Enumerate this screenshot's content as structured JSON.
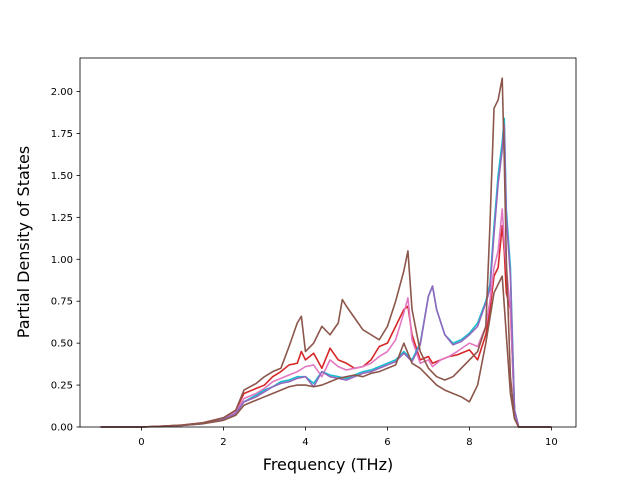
{
  "chart_data": {
    "type": "line",
    "title": "",
    "xlabel": "Frequency (THz)",
    "ylabel": "Partial Density of States",
    "xlim": [
      -1.5,
      10.6
    ],
    "ylim": [
      0,
      2.2
    ],
    "xticks": [
      0,
      2,
      4,
      6,
      8,
      10
    ],
    "xtick_labels": [
      "0",
      "2",
      "4",
      "6",
      "8",
      "10"
    ],
    "yticks": [
      0.0,
      0.25,
      0.5,
      0.75,
      1.0,
      1.25,
      1.5,
      1.75,
      2.0
    ],
    "ytick_labels": [
      "0.00",
      "0.25",
      "0.50",
      "0.75",
      "1.00",
      "1.25",
      "1.50",
      "1.75",
      "2.00"
    ],
    "grid": false,
    "series": [
      {
        "color": "#d62728",
        "x": [
          -1.0,
          0.0,
          0.5,
          1.0,
          1.5,
          2.0,
          2.3,
          2.5,
          2.8,
          3.0,
          3.2,
          3.4,
          3.6,
          3.8,
          3.9,
          4.0,
          4.2,
          4.4,
          4.6,
          4.8,
          5.0,
          5.2,
          5.4,
          5.6,
          5.8,
          6.0,
          6.2,
          6.4,
          6.5,
          6.6,
          6.8,
          7.0,
          7.1,
          7.3,
          7.5,
          7.7,
          8.0,
          8.2,
          8.4,
          8.5,
          8.6,
          8.7,
          8.8,
          8.85,
          8.9,
          9.0,
          9.1,
          9.2,
          9.5,
          10.0
        ],
        "y": [
          0.0,
          0.0,
          0.005,
          0.012,
          0.025,
          0.055,
          0.1,
          0.2,
          0.23,
          0.25,
          0.3,
          0.33,
          0.37,
          0.38,
          0.45,
          0.4,
          0.44,
          0.35,
          0.47,
          0.4,
          0.38,
          0.35,
          0.36,
          0.4,
          0.48,
          0.5,
          0.6,
          0.7,
          0.72,
          0.55,
          0.4,
          0.42,
          0.38,
          0.4,
          0.42,
          0.43,
          0.46,
          0.4,
          0.55,
          0.7,
          0.9,
          0.95,
          1.2,
          1.05,
          0.8,
          0.7,
          0.1,
          0.0,
          0.0,
          0.0
        ]
      },
      {
        "color": "#e377c2",
        "x": [
          -1.0,
          0.0,
          0.5,
          1.0,
          1.5,
          2.0,
          2.3,
          2.5,
          2.8,
          3.0,
          3.2,
          3.4,
          3.6,
          3.8,
          4.0,
          4.2,
          4.4,
          4.6,
          4.8,
          5.0,
          5.2,
          5.4,
          5.6,
          5.8,
          6.0,
          6.2,
          6.4,
          6.5,
          6.6,
          6.8,
          7.0,
          7.1,
          7.3,
          7.5,
          7.7,
          8.0,
          8.2,
          8.4,
          8.5,
          8.6,
          8.7,
          8.8,
          8.85,
          8.9,
          9.0,
          9.1,
          9.2,
          9.5,
          10.0
        ],
        "y": [
          0.0,
          0.0,
          0.005,
          0.01,
          0.022,
          0.05,
          0.09,
          0.17,
          0.2,
          0.23,
          0.27,
          0.29,
          0.31,
          0.33,
          0.36,
          0.37,
          0.3,
          0.4,
          0.36,
          0.34,
          0.35,
          0.36,
          0.38,
          0.42,
          0.45,
          0.52,
          0.68,
          0.77,
          0.52,
          0.38,
          0.4,
          0.36,
          0.4,
          0.42,
          0.45,
          0.5,
          0.48,
          0.6,
          0.75,
          0.95,
          1.05,
          1.3,
          1.1,
          0.95,
          0.7,
          0.1,
          0.0,
          0.0,
          0.0
        ]
      },
      {
        "color": "#17becf",
        "x": [
          -1.0,
          0.0,
          0.5,
          1.0,
          1.5,
          2.0,
          2.3,
          2.5,
          2.8,
          3.0,
          3.2,
          3.4,
          3.6,
          3.8,
          4.0,
          4.2,
          4.4,
          4.6,
          4.8,
          5.0,
          5.2,
          5.4,
          5.6,
          5.8,
          6.0,
          6.2,
          6.4,
          6.6,
          6.8,
          7.0,
          7.1,
          7.2,
          7.4,
          7.6,
          7.8,
          8.0,
          8.2,
          8.4,
          8.5,
          8.6,
          8.7,
          8.8,
          8.85,
          8.9,
          9.0,
          9.1,
          9.2,
          9.5,
          10.0
        ],
        "y": [
          0.0,
          0.0,
          0.004,
          0.01,
          0.02,
          0.045,
          0.08,
          0.15,
          0.19,
          0.22,
          0.24,
          0.27,
          0.28,
          0.3,
          0.3,
          0.26,
          0.33,
          0.31,
          0.3,
          0.29,
          0.31,
          0.33,
          0.34,
          0.36,
          0.38,
          0.4,
          0.45,
          0.4,
          0.5,
          0.78,
          0.84,
          0.7,
          0.55,
          0.5,
          0.52,
          0.56,
          0.62,
          0.75,
          0.85,
          1.2,
          1.5,
          1.7,
          1.84,
          1.3,
          0.95,
          0.1,
          0.0,
          0.0,
          0.0
        ]
      },
      {
        "color": "#9467bd",
        "x": [
          -1.0,
          0.0,
          0.5,
          1.0,
          1.5,
          2.0,
          2.3,
          2.5,
          2.8,
          3.0,
          3.2,
          3.4,
          3.6,
          3.8,
          4.0,
          4.2,
          4.4,
          4.6,
          4.8,
          5.0,
          5.2,
          5.4,
          5.6,
          5.8,
          6.0,
          6.2,
          6.4,
          6.6,
          6.8,
          7.0,
          7.1,
          7.2,
          7.4,
          7.6,
          7.8,
          8.0,
          8.2,
          8.4,
          8.5,
          8.6,
          8.7,
          8.8,
          8.85,
          8.9,
          9.0,
          9.1,
          9.2,
          9.5,
          10.0
        ],
        "y": [
          0.0,
          0.0,
          0.004,
          0.01,
          0.02,
          0.045,
          0.08,
          0.15,
          0.18,
          0.21,
          0.24,
          0.26,
          0.27,
          0.29,
          0.3,
          0.24,
          0.33,
          0.3,
          0.29,
          0.28,
          0.3,
          0.32,
          0.33,
          0.35,
          0.37,
          0.39,
          0.44,
          0.39,
          0.49,
          0.78,
          0.84,
          0.7,
          0.55,
          0.49,
          0.51,
          0.55,
          0.6,
          0.74,
          0.82,
          1.15,
          1.45,
          1.65,
          1.8,
          1.25,
          0.9,
          0.1,
          0.0,
          0.0,
          0.0
        ]
      },
      {
        "color": "#8c564b",
        "x": [
          -1.0,
          0.0,
          0.5,
          1.0,
          1.5,
          2.0,
          2.3,
          2.5,
          2.8,
          3.0,
          3.2,
          3.4,
          3.6,
          3.8,
          3.9,
          4.0,
          4.2,
          4.4,
          4.6,
          4.8,
          4.9,
          5.0,
          5.2,
          5.4,
          5.6,
          5.8,
          6.0,
          6.2,
          6.4,
          6.5,
          6.6,
          6.8,
          7.0,
          7.2,
          7.4,
          7.6,
          7.8,
          8.0,
          8.2,
          8.4,
          8.5,
          8.6,
          8.7,
          8.8,
          8.85,
          8.9,
          9.0,
          9.1,
          9.2,
          9.5,
          10.0
        ],
        "y": [
          0.0,
          0.0,
          0.005,
          0.012,
          0.025,
          0.055,
          0.1,
          0.22,
          0.26,
          0.3,
          0.33,
          0.35,
          0.48,
          0.62,
          0.66,
          0.45,
          0.5,
          0.6,
          0.55,
          0.62,
          0.76,
          0.72,
          0.65,
          0.58,
          0.55,
          0.52,
          0.6,
          0.75,
          0.93,
          1.05,
          0.7,
          0.45,
          0.35,
          0.3,
          0.28,
          0.3,
          0.35,
          0.4,
          0.45,
          0.6,
          1.2,
          1.9,
          1.95,
          2.08,
          1.6,
          1.0,
          0.3,
          0.05,
          0.0,
          0.0,
          0.0
        ]
      },
      {
        "color": "#8c564b",
        "x": [
          -1.0,
          0.0,
          0.5,
          1.0,
          1.5,
          2.0,
          2.3,
          2.5,
          2.8,
          3.0,
          3.2,
          3.4,
          3.6,
          3.8,
          4.0,
          4.2,
          4.4,
          4.6,
          4.8,
          5.0,
          5.2,
          5.4,
          5.6,
          5.8,
          6.0,
          6.2,
          6.4,
          6.6,
          6.8,
          7.0,
          7.2,
          7.4,
          7.6,
          7.8,
          8.0,
          8.2,
          8.4,
          8.6,
          8.8,
          9.0,
          9.1,
          9.2,
          9.5,
          10.0
        ],
        "y": [
          0.0,
          0.0,
          0.004,
          0.01,
          0.02,
          0.04,
          0.07,
          0.13,
          0.16,
          0.18,
          0.2,
          0.22,
          0.24,
          0.25,
          0.25,
          0.24,
          0.25,
          0.27,
          0.29,
          0.3,
          0.31,
          0.3,
          0.32,
          0.33,
          0.35,
          0.37,
          0.5,
          0.38,
          0.35,
          0.3,
          0.25,
          0.22,
          0.2,
          0.18,
          0.15,
          0.25,
          0.5,
          0.8,
          0.9,
          0.2,
          0.05,
          0.0,
          0.0,
          0.0
        ]
      }
    ]
  }
}
